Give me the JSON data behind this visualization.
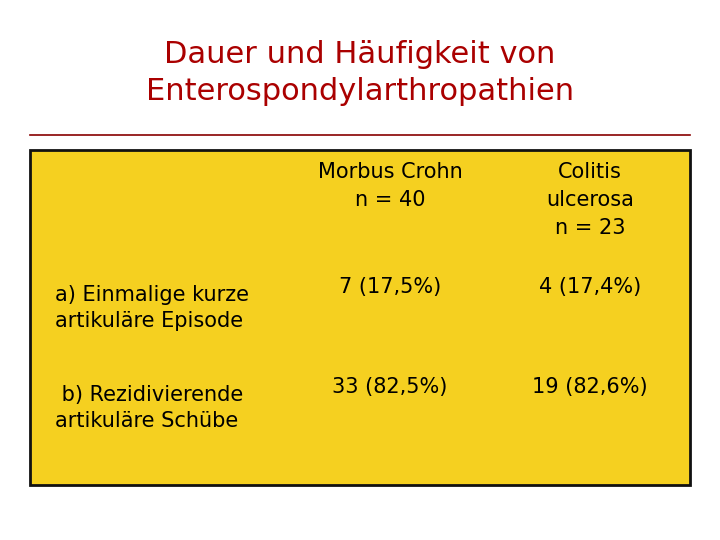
{
  "title_line1": "Dauer und Häufigkeit von",
  "title_line2": "Enterospondylarthropathien",
  "title_color": "#aa0000",
  "title_fontsize": 22,
  "bg_color": "#ffffff",
  "table_bg_color": "#f5d020",
  "table_border_color": "#111111",
  "separator_color": "#880000",
  "col1_header_line1": "Morbus Crohn",
  "col1_header_line2": "n = 40",
  "col2_header_line1": "Colitis",
  "col2_header_line2": "ulcerosa",
  "col2_header_line3": "n = 23",
  "row1_label_line1": "a) Einmalige kurze",
  "row1_label_line2": "artikuläre Episode",
  "row1_col1": "7 (17,5%)",
  "row1_col2": "4 (17,4%)",
  "row2_label_line1": " b) Rezidivierende",
  "row2_label_line2": "artikuläre Schübe",
  "row2_col1": "33 (82,5%)",
  "row2_col2": "19 (82,6%)",
  "cell_fontsize": 15,
  "header_fontsize": 15
}
